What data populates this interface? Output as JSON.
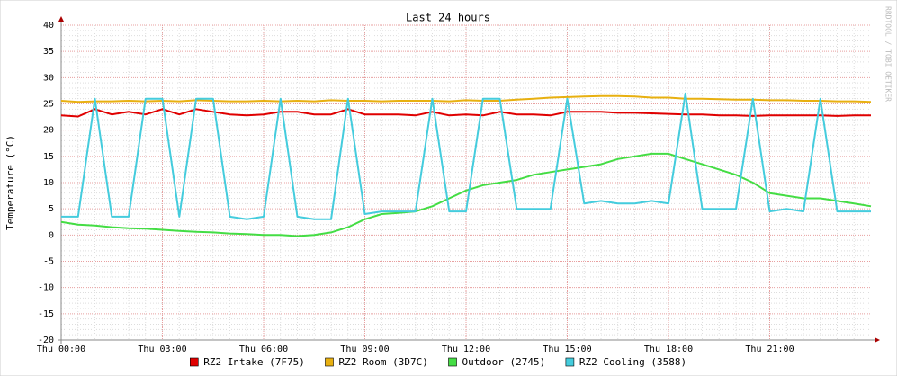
{
  "chart_data": {
    "type": "line",
    "title": "Last 24 hours",
    "y_label": "Temperature (°C)",
    "watermark": "RRDTOOL / TOBI OETIKER",
    "x": [
      0,
      0.5,
      1,
      1.5,
      2,
      2.5,
      3,
      3.5,
      4,
      4.5,
      5,
      5.5,
      6,
      6.5,
      7,
      7.5,
      8,
      8.5,
      9,
      9.5,
      10,
      10.5,
      11,
      11.5,
      12,
      12.5,
      13,
      13.5,
      14,
      14.5,
      15,
      15.5,
      16,
      16.5,
      17,
      17.5,
      18,
      18.5,
      19,
      19.5,
      20,
      20.5,
      21,
      21.5,
      22,
      22.5,
      23,
      23.5,
      24
    ],
    "xlim": [
      0,
      24
    ],
    "xticks": [
      {
        "value": 0,
        "label": "Thu 00:00"
      },
      {
        "value": 3,
        "label": "Thu 03:00"
      },
      {
        "value": 6,
        "label": "Thu 06:00"
      },
      {
        "value": 9,
        "label": "Thu 09:00"
      },
      {
        "value": 12,
        "label": "Thu 12:00"
      },
      {
        "value": 15,
        "label": "Thu 15:00"
      },
      {
        "value": 18,
        "label": "Thu 18:00"
      },
      {
        "value": 21,
        "label": "Thu 21:00"
      }
    ],
    "ylim": [
      -20,
      40
    ],
    "yticks": [
      -20,
      -15,
      -10,
      -5,
      0,
      5,
      10,
      15,
      20,
      25,
      30,
      35,
      40
    ],
    "grid": true,
    "series": [
      {
        "name": "RZ2 Intake (7F75)",
        "color": "#e00000",
        "values": [
          22.8,
          22.6,
          24,
          23,
          23.5,
          23,
          24,
          23,
          24,
          23.5,
          23,
          22.8,
          23,
          23.5,
          23.5,
          23,
          23,
          24,
          23,
          23,
          23,
          22.8,
          23.5,
          22.8,
          23,
          22.8,
          23.5,
          23,
          23,
          22.8,
          23.5,
          23.5,
          23.5,
          23.3,
          23.3,
          23.2,
          23.1,
          23,
          23,
          22.8,
          22.8,
          22.7,
          22.8,
          22.8,
          22.8,
          22.8,
          22.7,
          22.8,
          22.8
        ]
      },
      {
        "name": "RZ2 Room (3D7C)",
        "color": "#e8b010",
        "values": [
          25.6,
          25.4,
          25.5,
          25.5,
          25.6,
          25.5,
          25.6,
          25.5,
          25.7,
          25.6,
          25.5,
          25.5,
          25.6,
          25.5,
          25.6,
          25.5,
          25.7,
          25.6,
          25.6,
          25.5,
          25.6,
          25.6,
          25.6,
          25.5,
          25.7,
          25.6,
          25.6,
          25.8,
          26,
          26.2,
          26.3,
          26.4,
          26.5,
          26.5,
          26.4,
          26.2,
          26.2,
          26,
          26,
          25.9,
          25.8,
          25.8,
          25.7,
          25.7,
          25.6,
          25.6,
          25.5,
          25.5,
          25.4
        ]
      },
      {
        "name": "Outdoor (2745)",
        "color": "#44dd44",
        "values": [
          2.5,
          2,
          1.8,
          1.5,
          1.3,
          1.2,
          1,
          0.8,
          0.6,
          0.5,
          0.3,
          0.2,
          0,
          0,
          -0.2,
          0,
          0.5,
          1.5,
          3,
          4,
          4.2,
          4.5,
          5.5,
          7,
          8.5,
          9.5,
          10,
          10.5,
          11.5,
          12,
          12.5,
          13,
          13.5,
          14.5,
          15,
          15.5,
          15.5,
          14.5,
          13.5,
          12.5,
          11.5,
          10,
          8,
          7.5,
          7,
          7,
          6.5,
          6,
          5.5
        ]
      },
      {
        "name": "RZ2 Cooling (3588)",
        "color": "#44ccdd",
        "values": [
          3.5,
          3.5,
          26,
          3.5,
          3.5,
          26,
          26,
          3.5,
          26,
          26,
          3.5,
          3,
          3.5,
          26,
          3.5,
          3,
          3,
          26,
          4,
          4.5,
          4.5,
          4.5,
          26,
          4.5,
          4.5,
          26,
          26,
          5,
          5,
          5,
          26,
          6,
          6.5,
          6,
          6,
          6.5,
          6,
          27,
          5,
          5,
          5,
          26,
          4.5,
          5,
          4.5,
          26,
          4.5,
          4.5,
          4.5
        ]
      }
    ]
  }
}
